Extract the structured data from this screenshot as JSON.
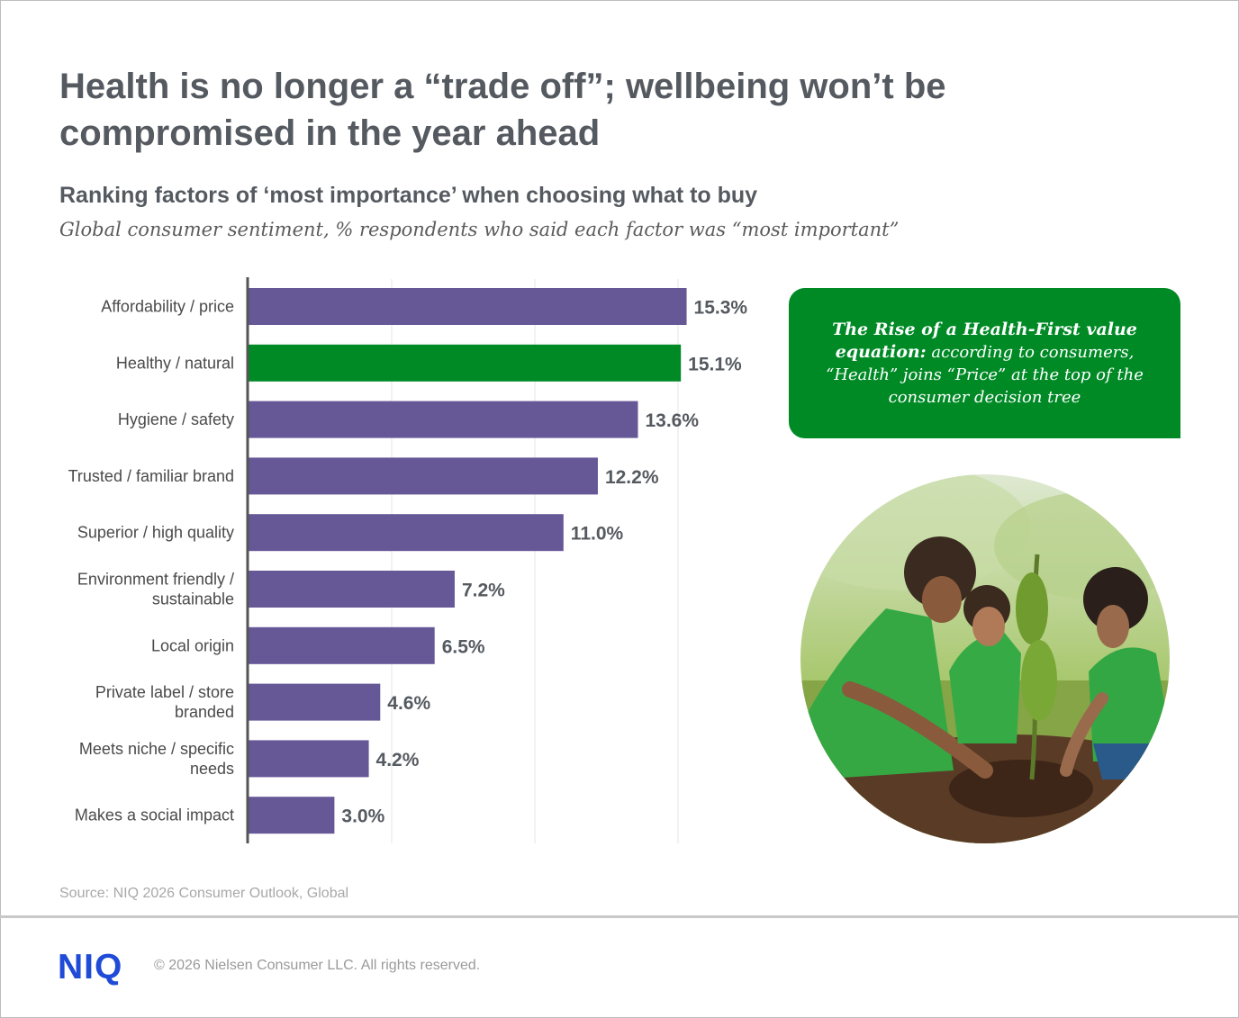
{
  "header": {
    "title": "Health is no longer a “trade off”; wellbeing won’t be compromised in the year ahead",
    "subtitle": "Ranking factors of ‘most importance’ when choosing what to buy",
    "description": "Global consumer sentiment, % respondents who said each factor was “most important”"
  },
  "chart_data": {
    "type": "bar",
    "orientation": "horizontal",
    "categories": [
      [
        "Affordability / price"
      ],
      [
        "Healthy / natural"
      ],
      [
        "Hygiene / safety"
      ],
      [
        "Trusted / familiar brand"
      ],
      [
        "Superior / high quality"
      ],
      [
        "Environment friendly /",
        "sustainable"
      ],
      [
        "Local origin"
      ],
      [
        "Private label / store",
        "branded"
      ],
      [
        "Meets niche / specific",
        "needs"
      ],
      [
        "Makes a social impact"
      ]
    ],
    "values": [
      15.3,
      15.1,
      13.6,
      12.2,
      11.0,
      7.2,
      6.5,
      4.6,
      4.2,
      3.0
    ],
    "value_labels": [
      "15.3%",
      "15.1%",
      "13.6%",
      "12.2%",
      "11.0%",
      "7.2%",
      "6.5%",
      "4.6%",
      "4.2%",
      "3.0%"
    ],
    "xlim": [
      0,
      20
    ],
    "grid": true,
    "colors": {
      "default": "#665797",
      "highlight": "#008a26"
    },
    "highlight_index": 1
  },
  "callout": {
    "bold": "The Rise of a Health-First value equation:",
    "text": " according to consumers, “Health” joins “Price” at the top of the consumer decision tree"
  },
  "footer": {
    "source": "Source: NIQ 2026 Consumer Outlook, Global",
    "logo": "NIQ",
    "copyright": "© 2026 Nielsen Consumer LLC. All rights reserved."
  }
}
